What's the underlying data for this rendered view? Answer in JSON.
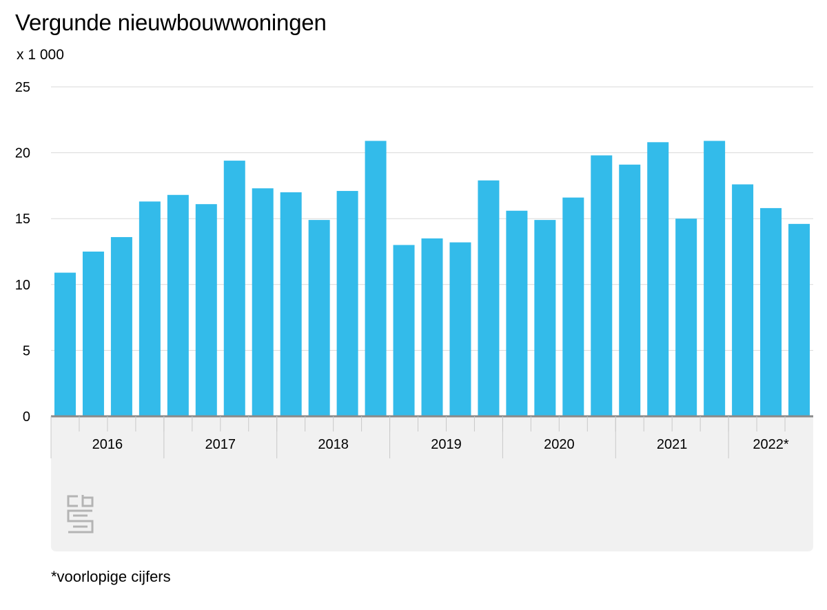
{
  "chart_data": {
    "type": "bar",
    "title": "Vergunde nieuwbouwwoningen",
    "unit_label": "x 1 000",
    "xlabel": "",
    "ylabel": "",
    "ylim": [
      0,
      25
    ],
    "yticks": [
      0,
      5,
      10,
      15,
      20,
      25
    ],
    "grid": true,
    "categories": [
      "2016-Q1",
      "2016-Q2",
      "2016-Q3",
      "2016-Q4",
      "2017-Q1",
      "2017-Q2",
      "2017-Q3",
      "2017-Q4",
      "2018-Q1",
      "2018-Q2",
      "2018-Q3",
      "2018-Q4",
      "2019-Q1",
      "2019-Q2",
      "2019-Q3",
      "2019-Q4",
      "2020-Q1",
      "2020-Q2",
      "2020-Q3",
      "2020-Q4",
      "2021-Q1",
      "2021-Q2",
      "2021-Q3",
      "2021-Q4",
      "2022-Q1",
      "2022-Q2",
      "2022-Q3"
    ],
    "values": [
      10.9,
      12.5,
      13.6,
      16.3,
      16.8,
      16.1,
      19.4,
      17.3,
      17.0,
      14.9,
      17.1,
      20.9,
      13.0,
      13.5,
      13.2,
      17.9,
      15.6,
      14.9,
      16.6,
      19.8,
      19.1,
      20.8,
      15.0,
      20.9,
      17.6,
      15.8,
      14.6
    ],
    "year_groups": [
      {
        "label": "2016",
        "count": 4
      },
      {
        "label": "2017",
        "count": 4
      },
      {
        "label": "2018",
        "count": 4
      },
      {
        "label": "2019",
        "count": 4
      },
      {
        "label": "2020",
        "count": 4
      },
      {
        "label": "2021",
        "count": 4
      },
      {
        "label": "2022*",
        "count": 3
      }
    ],
    "bar_color": "#33bbea",
    "footnote": "*voorlopige cijfers"
  },
  "logo": {
    "text": "cbs"
  }
}
